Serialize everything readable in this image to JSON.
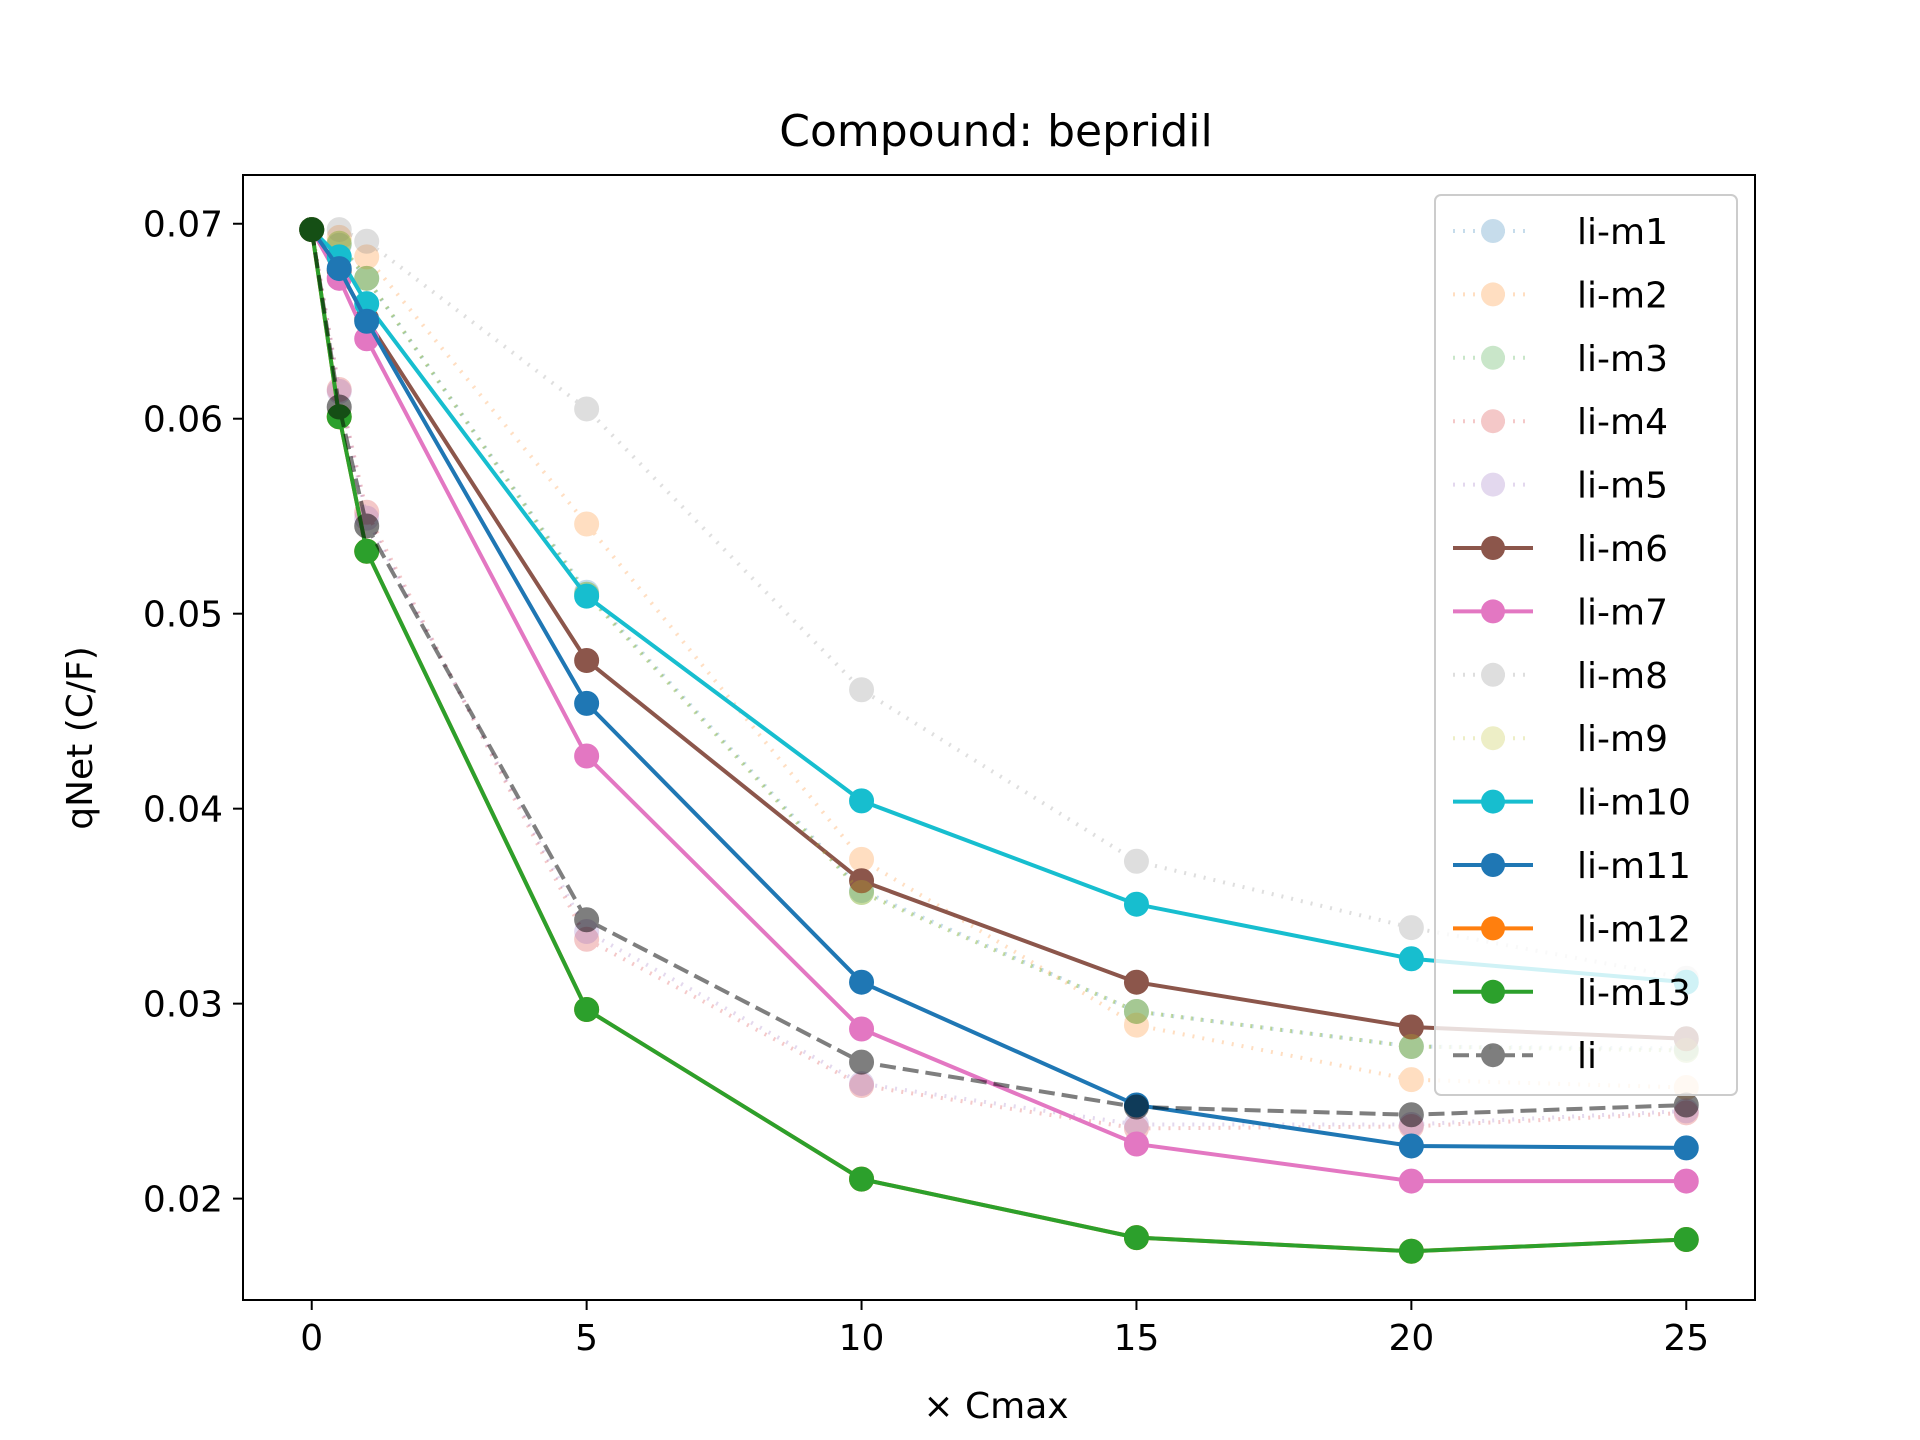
{
  "chart_data": {
    "type": "line",
    "title": "Compound: bepridil",
    "xlabel": "× Cmax",
    "ylabel": "qNet (C/F)",
    "xlim": [
      -1.25,
      26.25
    ],
    "ylim": [
      0.0148,
      0.0725
    ],
    "x": [
      0,
      0.5,
      1,
      5,
      10,
      15,
      20,
      25
    ],
    "x_ticks": [
      {
        "value": 0,
        "label": "0"
      },
      {
        "value": 5,
        "label": "5"
      },
      {
        "value": 10,
        "label": "10"
      },
      {
        "value": 15,
        "label": "15"
      },
      {
        "value": 20,
        "label": "20"
      },
      {
        "value": 25,
        "label": "25"
      }
    ],
    "y_ticks": [
      {
        "value": 0.02,
        "label": "0.02"
      },
      {
        "value": 0.03,
        "label": "0.03"
      },
      {
        "value": 0.04,
        "label": "0.04"
      },
      {
        "value": 0.05,
        "label": "0.05"
      },
      {
        "value": 0.06,
        "label": "0.06"
      },
      {
        "value": 0.07,
        "label": "0.07"
      }
    ],
    "grid": false,
    "legend_position": "top-right",
    "series": [
      {
        "name": "li-m1",
        "color": "#1f77b4",
        "style": "dotted",
        "opacity": 0.25,
        "values": [
          0.0697,
          0.0689,
          0.0672,
          0.0511,
          0.0358,
          0.0296,
          0.0278,
          0.0277
        ]
      },
      {
        "name": "li-m2",
        "color": "#ff7f0e",
        "style": "dotted",
        "opacity": 0.25,
        "values": [
          0.0697,
          0.0693,
          0.0683,
          0.0546,
          0.0374,
          0.0289,
          0.0261,
          0.0257
        ]
      },
      {
        "name": "li-m3",
        "color": "#2ca02c",
        "style": "dotted",
        "opacity": 0.25,
        "values": [
          0.0697,
          0.069,
          0.0672,
          0.051,
          0.0357,
          0.0296,
          0.0278,
          0.0276
        ]
      },
      {
        "name": "li-m4",
        "color": "#d62728",
        "style": "dotted",
        "opacity": 0.25,
        "values": [
          0.0697,
          0.0615,
          0.0552,
          0.0333,
          0.0258,
          0.0236,
          0.0237,
          0.0244
        ]
      },
      {
        "name": "li-m5",
        "color": "#9467bd",
        "style": "dotted",
        "opacity": 0.25,
        "values": [
          0.0697,
          0.0614,
          0.0549,
          0.0337,
          0.0259,
          0.0238,
          0.0238,
          0.0245
        ]
      },
      {
        "name": "li-m6",
        "color": "#8c564b",
        "style": "solid",
        "opacity": 1,
        "values": [
          0.0697,
          0.0676,
          0.0651,
          0.0476,
          0.0363,
          0.0311,
          0.0288,
          0.0282
        ]
      },
      {
        "name": "li-m7",
        "color": "#e377c2",
        "style": "solid",
        "opacity": 1,
        "values": [
          0.0697,
          0.0672,
          0.0641,
          0.0427,
          0.0287,
          0.0228,
          0.0209,
          0.0209
        ]
      },
      {
        "name": "li-m8",
        "color": "#7f7f7f",
        "style": "dotted",
        "opacity": 0.25,
        "values": [
          0.0697,
          0.0697,
          0.0691,
          0.0605,
          0.0461,
          0.0373,
          0.0339,
          0.0313
        ]
      },
      {
        "name": "li-m9",
        "color": "#bcbd22",
        "style": "dotted",
        "opacity": 0.25,
        "values": [
          0.0697,
          0.069,
          0.0672,
          0.051,
          0.0357,
          0.0296,
          0.0278,
          0.0276
        ]
      },
      {
        "name": "li-m10",
        "color": "#17becf",
        "style": "solid",
        "opacity": 1,
        "values": [
          0.0697,
          0.0683,
          0.0659,
          0.0509,
          0.0404,
          0.0351,
          0.0323,
          0.0311
        ]
      },
      {
        "name": "li-m11",
        "color": "#1f77b4",
        "style": "solid",
        "opacity": 1,
        "values": [
          0.0697,
          0.0677,
          0.065,
          0.0454,
          0.0311,
          0.0248,
          0.0227,
          0.0226
        ]
      },
      {
        "name": "li-m12",
        "color": "#ff7f0e",
        "style": "solid",
        "opacity": 1,
        "values": [
          0.0697,
          0.0601,
          0.0532,
          0.0297,
          0.021,
          0.018,
          0.0173,
          0.0179
        ]
      },
      {
        "name": "li-m13",
        "color": "#2ca02c",
        "style": "solid",
        "opacity": 1,
        "values": [
          0.0697,
          0.0601,
          0.0532,
          0.0297,
          0.021,
          0.018,
          0.0173,
          0.0179
        ]
      },
      {
        "name": "li",
        "color": "#000000",
        "style": "dashed",
        "opacity": 0.5,
        "values": [
          0.0697,
          0.0606,
          0.0545,
          0.0343,
          0.027,
          0.0247,
          0.0243,
          0.0248
        ]
      }
    ]
  }
}
